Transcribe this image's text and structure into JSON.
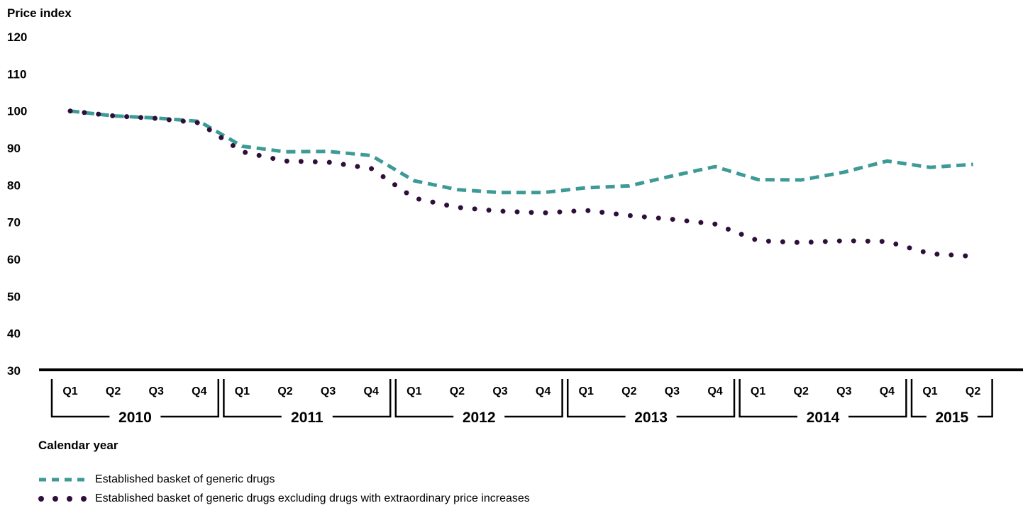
{
  "chart_data": {
    "type": "line",
    "ylabel": "Price index",
    "xlabel": "Calendar year",
    "ylim": [
      30,
      120
    ],
    "yticks": [
      "120",
      "110",
      "100",
      "90",
      "80",
      "70",
      "60",
      "50",
      "40",
      "30"
    ],
    "years": [
      {
        "label": "2010",
        "quarters": [
          "Q1",
          "Q2",
          "Q3",
          "Q4"
        ]
      },
      {
        "label": "2011",
        "quarters": [
          "Q1",
          "Q2",
          "Q3",
          "Q4"
        ]
      },
      {
        "label": "2012",
        "quarters": [
          "Q1",
          "Q2",
          "Q3",
          "Q4"
        ]
      },
      {
        "label": "2013",
        "quarters": [
          "Q1",
          "Q2",
          "Q3",
          "Q4"
        ]
      },
      {
        "label": "2014",
        "quarters": [
          "Q1",
          "Q2",
          "Q3",
          "Q4"
        ]
      },
      {
        "label": "2015",
        "quarters": [
          "Q1",
          "Q2"
        ]
      }
    ],
    "x": [
      "2010 Q1",
      "2010 Q2",
      "2010 Q3",
      "2010 Q4",
      "2011 Q1",
      "2011 Q2",
      "2011 Q3",
      "2011 Q4",
      "2012 Q1",
      "2012 Q2",
      "2012 Q3",
      "2012 Q4",
      "2013 Q1",
      "2013 Q2",
      "2013 Q3",
      "2013 Q4",
      "2014 Q1",
      "2014 Q2",
      "2014 Q3",
      "2014 Q4",
      "2015 Q1",
      "2015 Q2"
    ],
    "series": [
      {
        "name": "Established basket of generic drugs",
        "style": "dashed",
        "color": "#3d9a96",
        "values": [
          100,
          98.7,
          98.1,
          97.2,
          90.5,
          89.0,
          89.1,
          88.0,
          81.2,
          78.8,
          78.0,
          78.0,
          79.3,
          79.8,
          82.5,
          85.0,
          81.5,
          81.4,
          83.5,
          86.5,
          84.8,
          85.6
        ]
      },
      {
        "name": "Established basket of generic drugs excluding drugs with extraordinary price increases",
        "style": "dotted",
        "color": "#2e0f3b",
        "values": [
          100,
          98.7,
          98.0,
          96.8,
          89.0,
          86.5,
          86.2,
          84.5,
          76.5,
          74.0,
          73.0,
          72.5,
          73.2,
          71.8,
          70.8,
          69.5,
          65.0,
          64.5,
          65.0,
          64.8,
          61.5,
          60.8
        ]
      }
    ],
    "grid": false,
    "legend_position": "bottom-left"
  }
}
